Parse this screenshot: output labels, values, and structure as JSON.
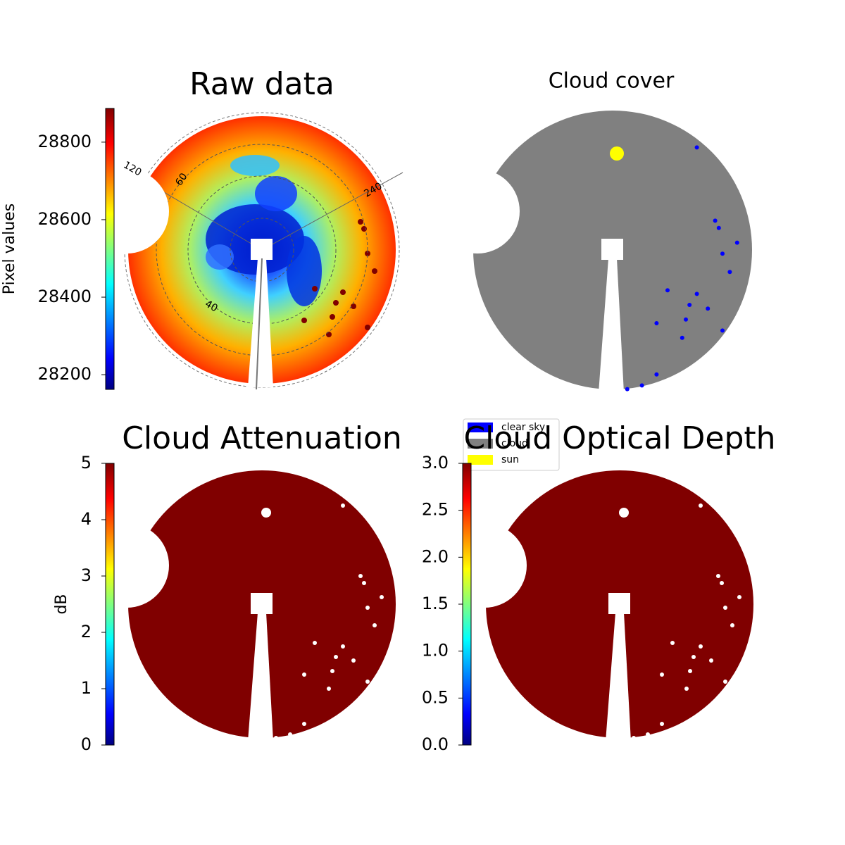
{
  "chart_data": [
    {
      "type": "image",
      "title": "Raw data",
      "colorbar_label": "Pixel values",
      "colormap": "jet",
      "clim": [
        28162,
        28887
      ],
      "cticks": [
        28200,
        28400,
        28600,
        28800
      ],
      "annotations": [
        "120",
        "240",
        "60",
        "40"
      ]
    },
    {
      "type": "classification",
      "title": "Cloud cover",
      "legend": [
        {
          "name": "clear sky",
          "color": "#0000ff"
        },
        {
          "name": "cloud",
          "color": "#808080"
        },
        {
          "name": "sun",
          "color": "#ffff00"
        }
      ]
    },
    {
      "type": "image",
      "title": "Cloud Attenuation",
      "colorbar_label": "dB",
      "colormap": "jet",
      "clim": [
        0,
        5
      ],
      "cticks": [
        0,
        1,
        2,
        3,
        4,
        5
      ]
    },
    {
      "type": "image",
      "title": "Cloud Optical Depth",
      "colormap": "jet",
      "clim": [
        0,
        3
      ],
      "cticks": [
        {
          "value": 0,
          "label": "0.0"
        },
        0.5,
        {
          "value": 1,
          "label": "1.0"
        },
        1.5,
        {
          "value": 2,
          "label": "2.0"
        },
        2.5,
        {
          "value": 3,
          "label": "3.0"
        }
      ]
    }
  ]
}
